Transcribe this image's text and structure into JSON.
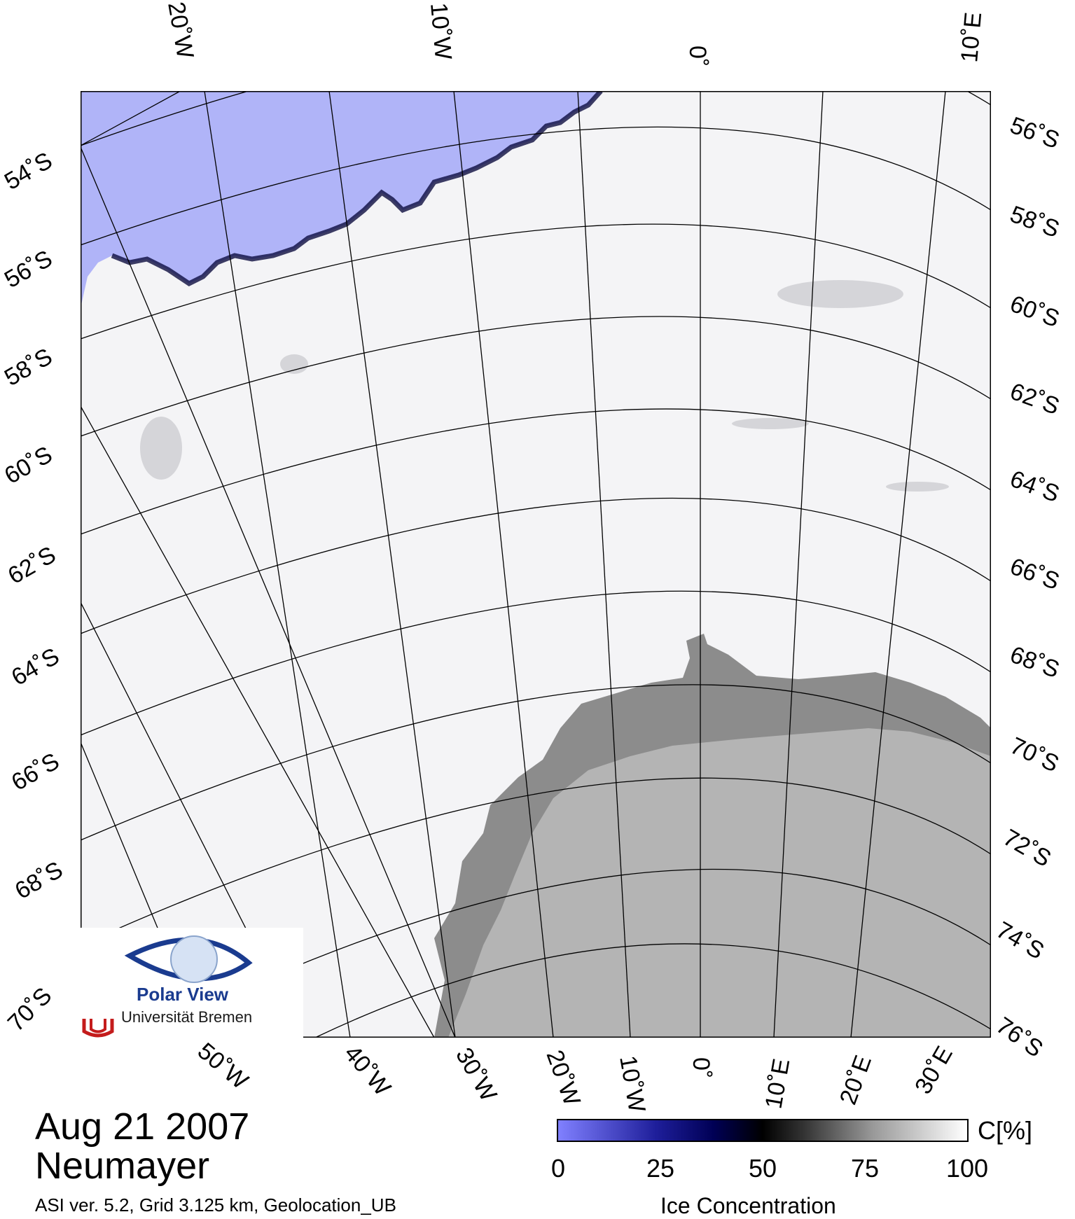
{
  "map": {
    "date": "Aug 21 2007",
    "station": "Neumayer",
    "footnote": "ASI ver. 5.2,  Grid 3.125 km, Geolocation_UB",
    "top_lon_labels": [
      "20˚W",
      "10˚W",
      "0˚",
      "10˚E"
    ],
    "bottom_lon_labels": [
      "50˚W",
      "40˚W",
      "30˚W",
      "20˚W",
      "10˚W",
      "0˚",
      "10˚E",
      "20˚E",
      "30˚E"
    ],
    "left_lat_labels": [
      "54˚S",
      "56˚S",
      "58˚S",
      "60˚S",
      "62˚S",
      "64˚S",
      "66˚S",
      "68˚S",
      "70˚S"
    ],
    "right_lat_labels": [
      "56˚S",
      "58˚S",
      "60˚S",
      "62˚S",
      "64˚S",
      "66˚S",
      "68˚S",
      "70˚S",
      "72˚S",
      "74˚S",
      "76˚S"
    ],
    "colors": {
      "open_water": "#b0b4f8",
      "sea_ice": "#f4f4f6",
      "land": "#b4b4b4",
      "ice_shelf": "#8c8c8c"
    }
  },
  "colorbar": {
    "title": "Ice Concentration",
    "unit": "C[%]",
    "ticks": [
      "0",
      "25",
      "50",
      "75",
      "100"
    ],
    "tick_values": [
      0,
      25,
      50,
      75,
      100
    ],
    "range": [
      0,
      100
    ]
  },
  "logo": {
    "name": "Polar View",
    "institution": "Universität Bremen"
  }
}
